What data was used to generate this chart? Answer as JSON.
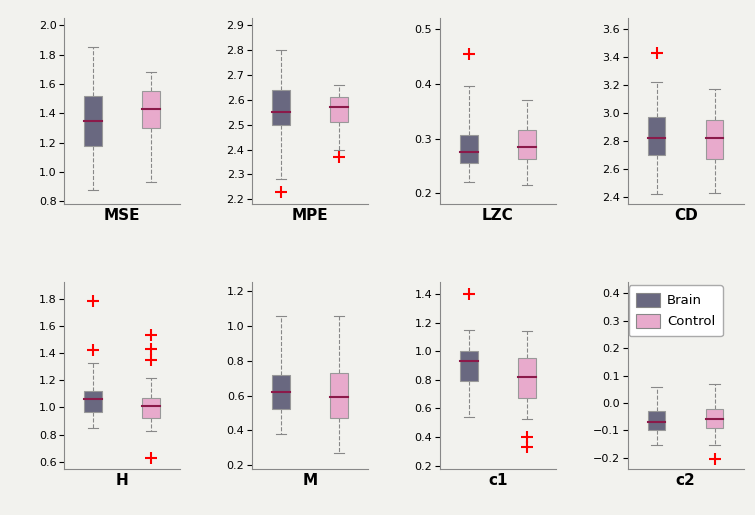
{
  "subplots": [
    {
      "label": "MSE",
      "brain": {
        "whislo": 0.88,
        "q1": 1.18,
        "med": 1.35,
        "q3": 1.52,
        "whishi": 1.85,
        "fliers": []
      },
      "control": {
        "whislo": 0.93,
        "q1": 1.3,
        "med": 1.43,
        "q3": 1.55,
        "whishi": 1.68,
        "fliers": []
      },
      "ylim": [
        0.78,
        2.05
      ],
      "yticks": [
        0.8,
        1.0,
        1.2,
        1.4,
        1.6,
        1.8,
        2.0
      ]
    },
    {
      "label": "MPE",
      "brain": {
        "whislo": 2.28,
        "q1": 2.5,
        "med": 2.55,
        "q3": 2.64,
        "whishi": 2.8,
        "fliers": [
          2.23
        ]
      },
      "control": {
        "whislo": 2.4,
        "q1": 2.51,
        "med": 2.57,
        "q3": 2.61,
        "whishi": 2.66,
        "fliers": [
          2.37
        ]
      },
      "ylim": [
        2.18,
        2.93
      ],
      "yticks": [
        2.2,
        2.3,
        2.4,
        2.5,
        2.6,
        2.7,
        2.8,
        2.9
      ]
    },
    {
      "label": "LZC",
      "brain": {
        "whislo": 0.22,
        "q1": 0.255,
        "med": 0.275,
        "q3": 0.307,
        "whishi": 0.395,
        "fliers": [
          0.455
        ]
      },
      "control": {
        "whislo": 0.215,
        "q1": 0.263,
        "med": 0.285,
        "q3": 0.315,
        "whishi": 0.37,
        "fliers": []
      },
      "ylim": [
        0.18,
        0.52
      ],
      "yticks": [
        0.2,
        0.3,
        0.4,
        0.5
      ]
    },
    {
      "label": "CD",
      "brain": {
        "whislo": 2.42,
        "q1": 2.7,
        "med": 2.82,
        "q3": 2.97,
        "whishi": 3.22,
        "fliers": [
          3.43
        ]
      },
      "control": {
        "whislo": 2.43,
        "q1": 2.67,
        "med": 2.82,
        "q3": 2.95,
        "whishi": 3.17,
        "fliers": []
      },
      "ylim": [
        2.35,
        3.68
      ],
      "yticks": [
        2.4,
        2.6,
        2.8,
        3.0,
        3.2,
        3.4,
        3.6
      ]
    },
    {
      "label": "H",
      "brain": {
        "whislo": 0.85,
        "q1": 0.97,
        "med": 1.06,
        "q3": 1.12,
        "whishi": 1.33,
        "fliers": [
          1.42,
          1.78
        ]
      },
      "control": {
        "whislo": 0.83,
        "q1": 0.92,
        "med": 1.01,
        "q3": 1.07,
        "whishi": 1.22,
        "fliers": [
          1.35,
          1.43,
          1.53,
          0.63
        ]
      },
      "ylim": [
        0.55,
        1.92
      ],
      "yticks": [
        0.6,
        0.8,
        1.0,
        1.2,
        1.4,
        1.6,
        1.8
      ]
    },
    {
      "label": "M",
      "brain": {
        "whislo": 0.38,
        "q1": 0.52,
        "med": 0.62,
        "q3": 0.72,
        "whishi": 1.06,
        "fliers": []
      },
      "control": {
        "whislo": 0.27,
        "q1": 0.47,
        "med": 0.59,
        "q3": 0.73,
        "whishi": 1.06,
        "fliers": []
      },
      "ylim": [
        0.18,
        1.25
      ],
      "yticks": [
        0.2,
        0.4,
        0.6,
        0.8,
        1.0,
        1.2
      ]
    },
    {
      "label": "c1",
      "brain": {
        "whislo": 0.54,
        "q1": 0.79,
        "med": 0.93,
        "q3": 1.0,
        "whishi": 1.15,
        "fliers": [
          1.4
        ]
      },
      "control": {
        "whislo": 0.53,
        "q1": 0.67,
        "med": 0.82,
        "q3": 0.95,
        "whishi": 1.14,
        "fliers": [
          0.4,
          0.33
        ]
      },
      "ylim": [
        0.18,
        1.48
      ],
      "yticks": [
        0.2,
        0.4,
        0.6,
        0.8,
        1.0,
        1.2,
        1.4
      ]
    },
    {
      "label": "c2",
      "brain": {
        "whislo": -0.155,
        "q1": -0.1,
        "med": -0.068,
        "q3": -0.03,
        "whishi": 0.058,
        "fliers": []
      },
      "control": {
        "whislo": -0.155,
        "q1": -0.09,
        "med": -0.058,
        "q3": -0.022,
        "whishi": 0.07,
        "fliers": [
          -0.205
        ]
      },
      "ylim": [
        -0.24,
        0.44
      ],
      "yticks": [
        -0.2,
        -0.1,
        0.0,
        0.1,
        0.2,
        0.3,
        0.4
      ]
    }
  ],
  "brain_color": "#696880",
  "control_color": "#e8aacc",
  "median_color": "#8b1a4a",
  "flier_color": "red",
  "background_color": "#f2f2ee",
  "fig_width": 7.55,
  "fig_height": 5.15,
  "dpi": 100
}
